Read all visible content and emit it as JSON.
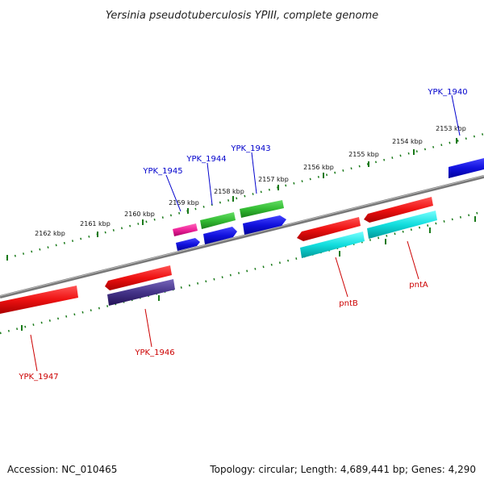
{
  "title": "Yersinia pseudotuberculosis YPIII, complete genome",
  "footer": {
    "accession": "Accession: NC_010465",
    "stats": "Topology: circular; Length: 4,689,441 bp; Genes: 4,290"
  },
  "ruler_labels": [
    "2153 kbp",
    "2154 kbp",
    "2155 kbp",
    "2156 kbp",
    "2157 kbp",
    "2158 kbp",
    "2159 kbp",
    "2160 kbp",
    "2161 kbp",
    "2162 kbp"
  ],
  "gene_labels": {
    "ypk_1940": "YPK_1940",
    "ypk_1943": "YPK_1943",
    "ypk_1944": "YPK_1944",
    "ypk_1945": "YPK_1945",
    "ypk_1946": "YPK_1946",
    "ypk_1947": "YPK_1947",
    "pntB": "pntB",
    "pntA": "pntA"
  },
  "colors": {
    "forward_label": "#0000cc",
    "reverse_label": "#cc0000",
    "backbone": "#777777",
    "tick": "#1a7a1a",
    "red": "#ee1111",
    "blue": "#1111dd",
    "green": "#33bb33",
    "cyan": "#11dddd",
    "magenta": "#ee2299",
    "purple": "#443388"
  }
}
